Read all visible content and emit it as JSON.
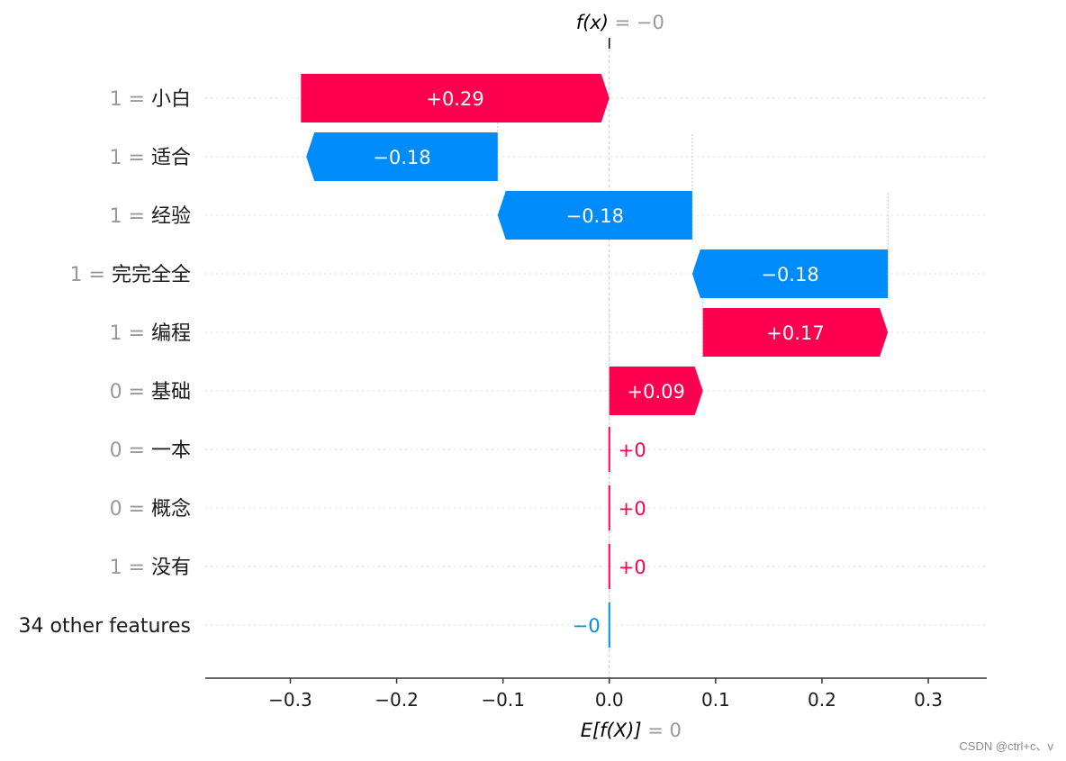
{
  "chart_data": {
    "type": "waterfall",
    "title": "",
    "fx_label": {
      "prefix": "f(x)",
      "rest": " = −0"
    },
    "ex_label": {
      "prefix": "E[f(X)]",
      "rest": " = 0"
    },
    "fx_value": 0,
    "base_value": 0,
    "xlim": [
      -0.38,
      0.355
    ],
    "xticks": [
      -0.3,
      -0.2,
      -0.1,
      0.0,
      0.1,
      0.2,
      0.3
    ],
    "xtick_labels": [
      "−0.3",
      "−0.2",
      "−0.1",
      "0.0",
      "0.1",
      "0.2",
      "0.3"
    ],
    "features": [
      {
        "value_text": "1 = ",
        "name": "小白",
        "start": -0.29,
        "end": 0.0,
        "label": "+0.29",
        "sign": "pos"
      },
      {
        "value_text": "1 = ",
        "name": "适合",
        "start": -0.105,
        "end": -0.285,
        "label": "−0.18",
        "sign": "neg"
      },
      {
        "value_text": "1 = ",
        "name": "经验",
        "start": 0.078,
        "end": -0.105,
        "label": "−0.18",
        "sign": "neg"
      },
      {
        "value_text": "1 = ",
        "name": "完完全全",
        "start": 0.262,
        "end": 0.078,
        "label": "−0.18",
        "sign": "neg"
      },
      {
        "value_text": "1 = ",
        "name": "编程",
        "start": 0.088,
        "end": 0.262,
        "label": "+0.17",
        "sign": "pos"
      },
      {
        "value_text": "0 = ",
        "name": "基础",
        "start": 0.0,
        "end": 0.088,
        "label": "+0.09",
        "sign": "pos"
      },
      {
        "value_text": "0 = ",
        "name": "一本",
        "start": 0.0,
        "end": 0.0,
        "label": "+0",
        "sign": "pos"
      },
      {
        "value_text": "0 = ",
        "name": "概念",
        "start": 0.0,
        "end": 0.0,
        "label": "+0",
        "sign": "pos"
      },
      {
        "value_text": "1 = ",
        "name": "没有",
        "start": 0.0,
        "end": 0.0,
        "label": "+0",
        "sign": "pos"
      },
      {
        "value_text": "",
        "name": "34 other features",
        "start": 0.0,
        "end": 0.0,
        "label": "−0",
        "sign": "neg"
      }
    ],
    "colors": {
      "positive": "#ff0051",
      "negative": "#008bfb",
      "value_gray": "#999999",
      "text": "#1a1a1a"
    }
  },
  "watermark": "CSDN @ctrl+c、v"
}
